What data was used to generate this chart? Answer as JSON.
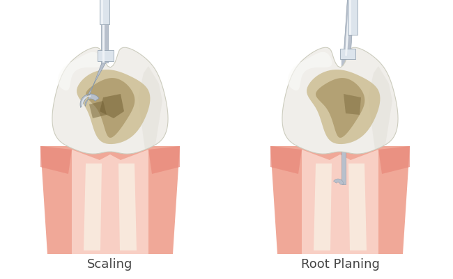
{
  "label_scaling": "Scaling",
  "label_root_planing": "Root Planing",
  "bg_color": "#ffffff",
  "label_fontsize": 13,
  "label_color": "#444444",
  "gum_outer": "#f0a898",
  "gum_mid": "#f4b8a8",
  "gum_inner": "#f8cfc4",
  "gum_light": "#fde8e0",
  "gum_dark_edge": "#e8887a",
  "tooth_base": "#f0eeea",
  "tooth_mid": "#e8e4dc",
  "tooth_highlight": "#fafaf8",
  "tooth_shadow": "#d8d4cc",
  "plaque_tan": "#c8b888",
  "plaque_brown": "#9a8450",
  "plaque_dark": "#6e5c30",
  "tool_mid": "#b8c0cc",
  "tool_light": "#dce4ec",
  "tool_dark": "#8898a8",
  "tool_vlight": "#eef2f6"
}
